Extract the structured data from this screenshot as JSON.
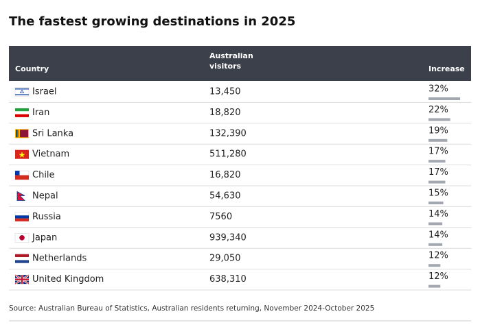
{
  "title": "The fastest growing destinations in 2025",
  "table": {
    "columns": [
      "Country",
      "Australian visitors",
      "Increase"
    ],
    "rows": [
      {
        "country": "Israel",
        "visitors": "13,450",
        "increase": {
          "value": 32,
          "label": "32%"
        }
      },
      {
        "country": "Iran",
        "visitors": "18,820",
        "increase": {
          "value": 22,
          "label": "22%"
        }
      },
      {
        "country": "Sri Lanka",
        "visitors": "132,390",
        "increase": {
          "value": 19,
          "label": "19%"
        }
      },
      {
        "country": "Vietnam",
        "visitors": "511,280",
        "increase": {
          "value": 17,
          "label": "17%"
        }
      },
      {
        "country": "Chile",
        "visitors": "16,820",
        "increase": {
          "value": 17,
          "label": "17%"
        }
      },
      {
        "country": "Nepal",
        "visitors": "54,630",
        "increase": {
          "value": 15,
          "label": "15%"
        }
      },
      {
        "country": "Russia",
        "visitors": "7560",
        "increase": {
          "value": 14,
          "label": "14%"
        }
      },
      {
        "country": "Japan",
        "visitors": "939,340",
        "increase": {
          "value": 14,
          "label": "14%"
        }
      },
      {
        "country": "Netherlands",
        "visitors": "29,050",
        "increase": {
          "value": 12,
          "label": "12%"
        }
      },
      {
        "country": "United Kingdom",
        "visitors": "638,310",
        "increase": {
          "value": 12,
          "label": "12%"
        }
      }
    ]
  },
  "source": "Source: Australian Bureau of Statistics, Australian residents returning, November 2024-October 2025"
}
